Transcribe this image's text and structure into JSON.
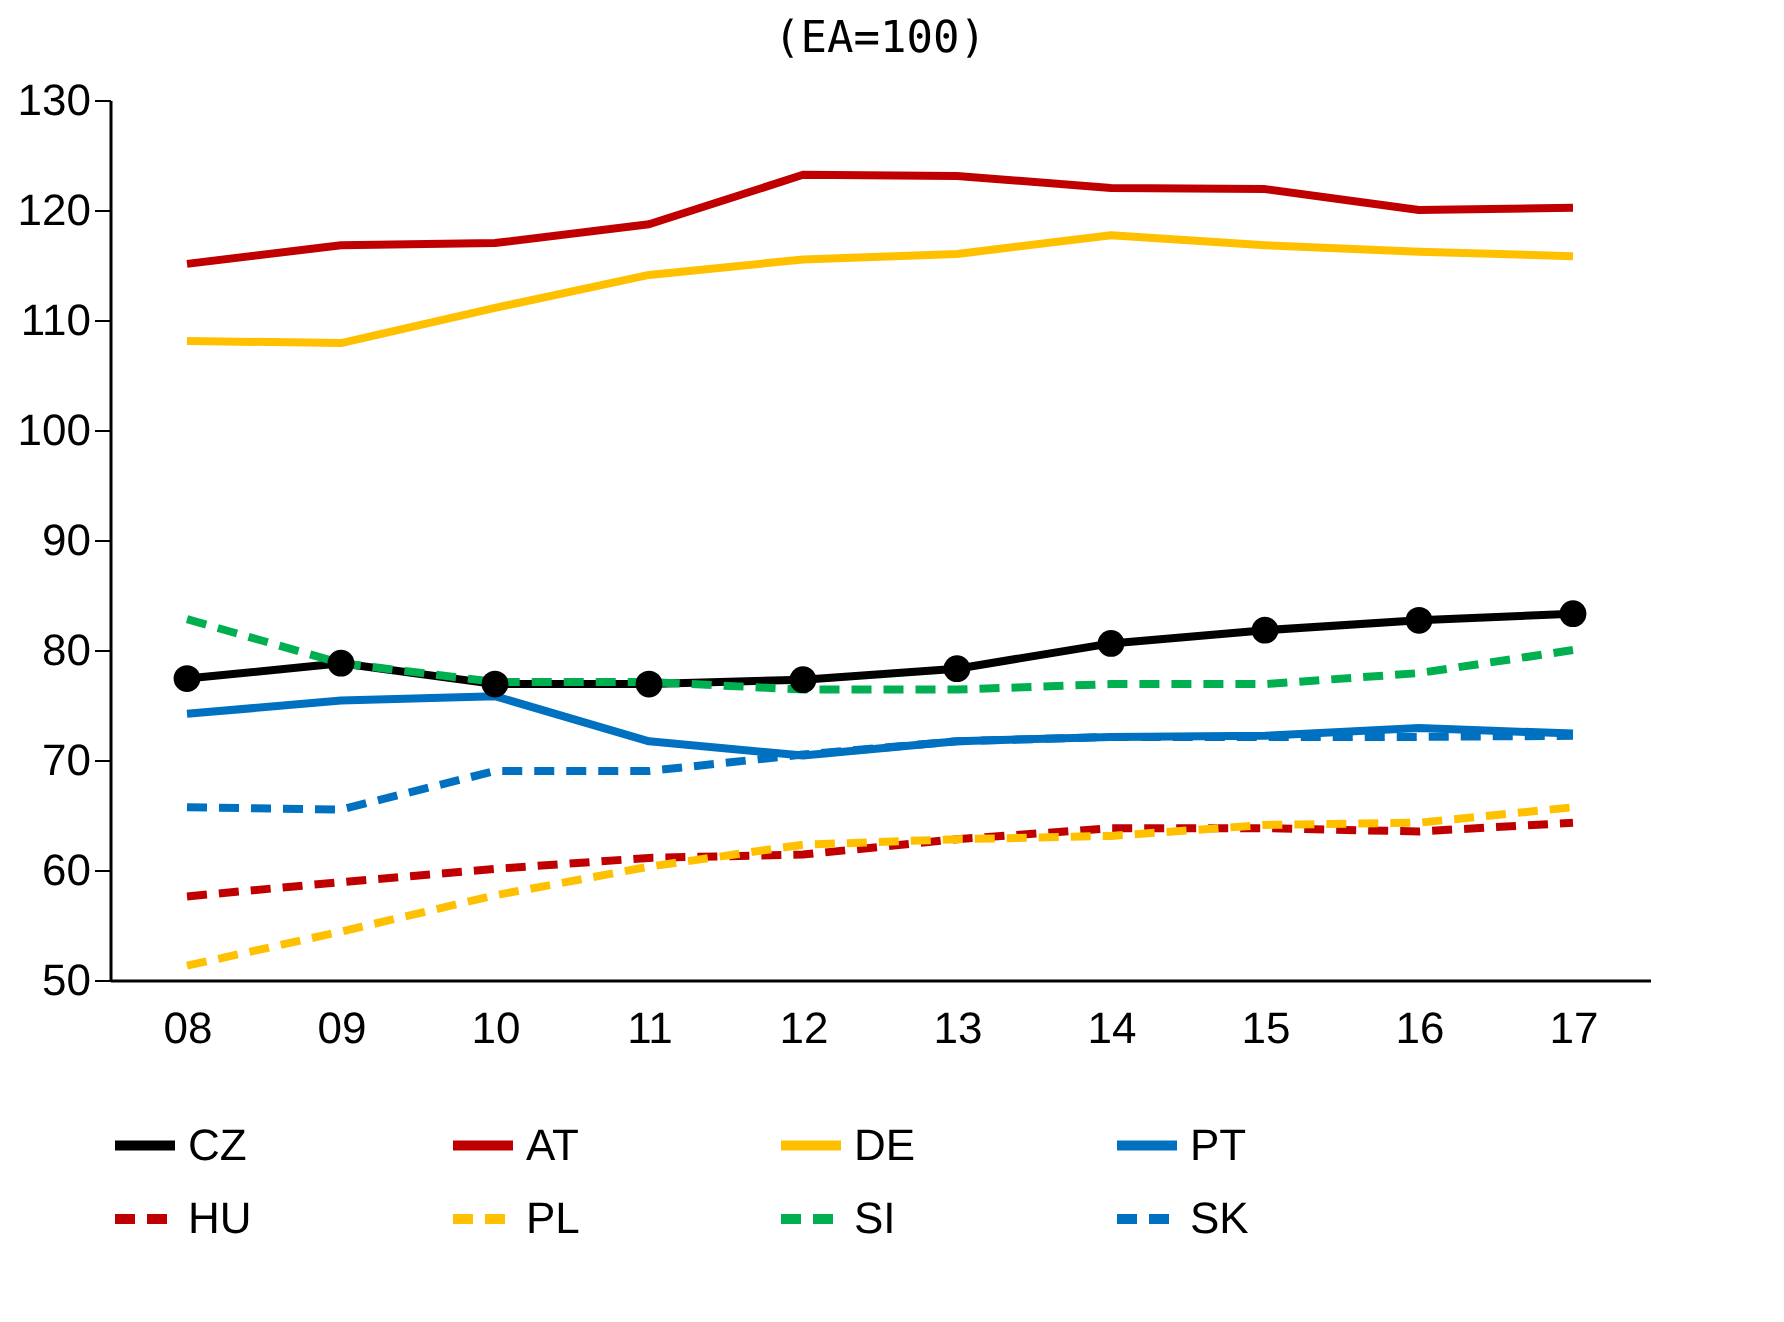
{
  "chart_data": {
    "type": "line",
    "title": "(EA=100)",
    "categories": [
      "08",
      "09",
      "10",
      "11",
      "12",
      "13",
      "14",
      "15",
      "16",
      "17"
    ],
    "series": [
      {
        "name": "CZ",
        "color": "#000000",
        "marker": "circle",
        "line_style": "solid",
        "values": [
          77.4,
          78.8,
          76.9,
          76.9,
          77.3,
          78.3,
          80.6,
          81.8,
          82.7,
          83.3
        ]
      },
      {
        "name": "AT",
        "color": "#c00000",
        "line_style": "solid",
        "values": [
          115.1,
          116.8,
          117,
          118.7,
          123.2,
          123.1,
          122,
          121.9,
          120,
          120.2
        ]
      },
      {
        "name": "DE",
        "color": "#ffc000",
        "line_style": "solid",
        "values": [
          108.1,
          107.9,
          111.1,
          114.1,
          115.5,
          116,
          117.7,
          116.8,
          116.2,
          115.8
        ]
      },
      {
        "name": "PT",
        "color": "#0070c0",
        "line_style": "solid",
        "values": [
          74.2,
          75.4,
          75.8,
          71.7,
          70.4,
          71.7,
          72.1,
          72.2,
          72.9,
          72.4
        ]
      },
      {
        "name": "HU",
        "color": "#c00000",
        "line_style": "dashed",
        "values": [
          57.6,
          58.9,
          60.1,
          61.1,
          61.4,
          62.8,
          63.8,
          63.8,
          63.5,
          64.3
        ]
      },
      {
        "name": "PL",
        "color": "#ffc000",
        "line_style": "dashed",
        "values": [
          51.3,
          54.4,
          57.7,
          60.3,
          62.3,
          62.8,
          63.1,
          64.1,
          64.3,
          65.7
        ]
      },
      {
        "name": "SI",
        "color": "#00b050",
        "line_style": "dashed",
        "values": [
          82.8,
          78.8,
          77.1,
          77.1,
          76.4,
          76.4,
          76.9,
          76.9,
          77.9,
          80
        ]
      },
      {
        "name": "SK",
        "color": "#0070c0",
        "line_style": "dashed",
        "values": [
          65.7,
          65.5,
          69,
          69,
          70.5,
          71.7,
          72.1,
          72.1,
          72.1,
          72.2
        ]
      }
    ],
    "ylim": [
      50,
      130
    ],
    "yticks": [
      50,
      60,
      70,
      80,
      90,
      100,
      110,
      120,
      130
    ],
    "grid": false,
    "legend": "bottom"
  }
}
